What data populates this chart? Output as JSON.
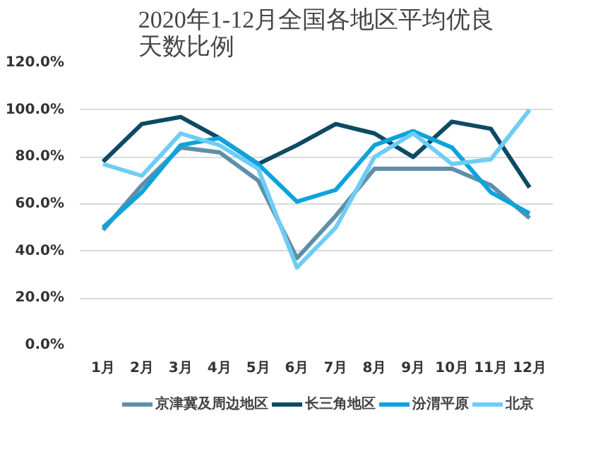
{
  "chart_data": {
    "type": "line",
    "title": "2020年1-12月全国各地区平均优良天数比例",
    "categories": [
      "1月",
      "2月",
      "3月",
      "4月",
      "5月",
      "6月",
      "7月",
      "8月",
      "9月",
      "10月",
      "11月",
      "12月"
    ],
    "series": [
      {
        "name": "京津冀及周边地区",
        "color": "#5f8fa8",
        "values": [
          49,
          68,
          84,
          82,
          70,
          37,
          55,
          75,
          75,
          75,
          68,
          54
        ]
      },
      {
        "name": "长三角地区",
        "color": "#0d4a63",
        "values": [
          78,
          94,
          97,
          88,
          77,
          85,
          94,
          90,
          80,
          95,
          92,
          67
        ]
      },
      {
        "name": "汾渭平原",
        "color": "#0ea3dc",
        "values": [
          50,
          65,
          85,
          88,
          77,
          61,
          66,
          85,
          91,
          84,
          65,
          56
        ]
      },
      {
        "name": "北京",
        "color": "#6fcdf5",
        "values": [
          77,
          72,
          90,
          85,
          75,
          33,
          50,
          80,
          90,
          77,
          79,
          100
        ]
      }
    ],
    "ylim": [
      0,
      120
    ],
    "yticks": [
      {
        "value": 0,
        "label": "0.0%"
      },
      {
        "value": 20,
        "label": "20.0%"
      },
      {
        "value": 40,
        "label": "40.0%"
      },
      {
        "value": 60,
        "label": "60.0%"
      },
      {
        "value": 80,
        "label": "80.0%"
      },
      {
        "value": 100,
        "label": "100.0%"
      },
      {
        "value": 120,
        "label": "120.0%"
      }
    ],
    "grid": "y",
    "legend": "bottom"
  }
}
